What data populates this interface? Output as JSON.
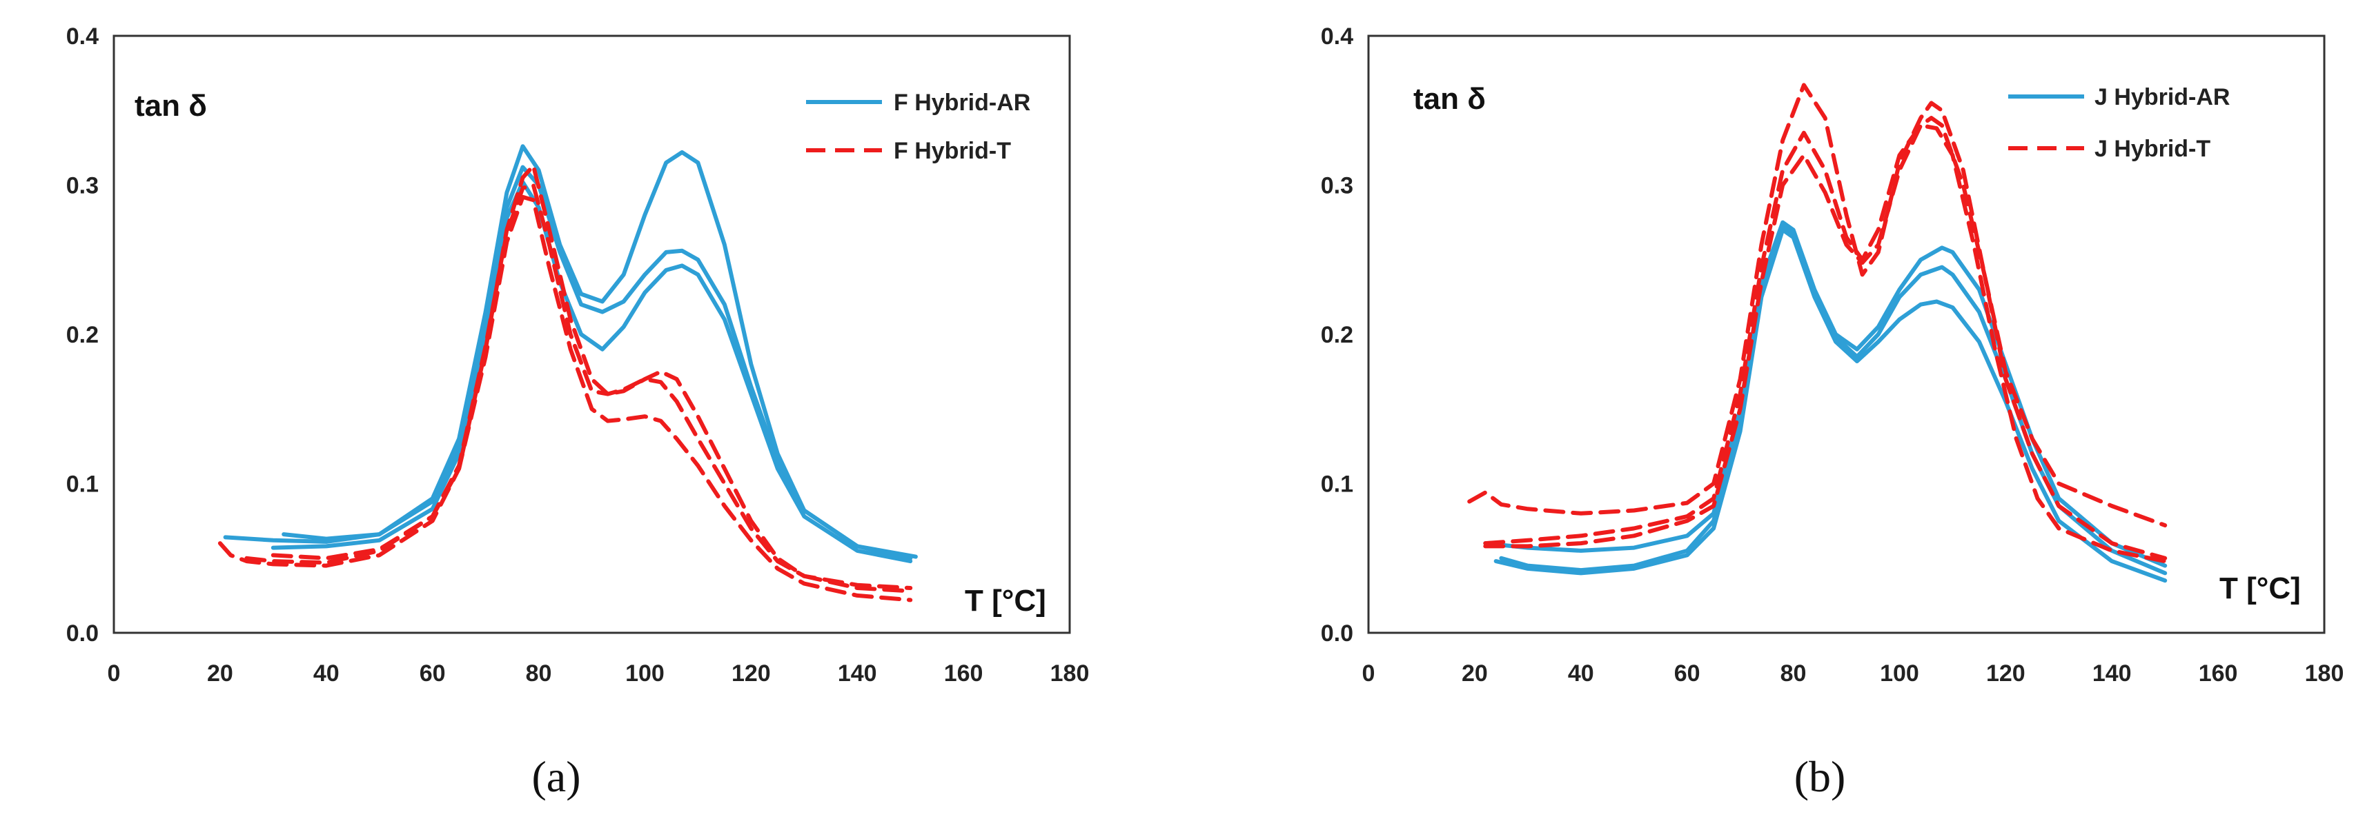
{
  "chart_data": [
    {
      "type": "line",
      "caption": "(a)",
      "annotation": "tan δ",
      "x_annotation": "T [°C]",
      "xlim": [
        0,
        180
      ],
      "ylim": [
        0,
        0.4
      ],
      "xticks": [
        "0",
        "20",
        "40",
        "60",
        "80",
        "100",
        "120",
        "140",
        "160",
        "180"
      ],
      "yticks": [
        "0.0",
        "0.1",
        "0.2",
        "0.3",
        "0.4"
      ],
      "legend_position": "top-right",
      "legend": [
        {
          "label": "F Hybrid-AR",
          "color": "#2e9fd6",
          "style": "solid"
        },
        {
          "label": "F Hybrid-T",
          "color": "#ee1c1c",
          "style": "dashed"
        }
      ],
      "series": [
        {
          "name": "F Hybrid-AR",
          "x": [
            21,
            30,
            40,
            50,
            60,
            65,
            70,
            74,
            77,
            80,
            84,
            88,
            92,
            96,
            100,
            104,
            107,
            110,
            115,
            120,
            125,
            130,
            140,
            150
          ],
          "y": [
            0.064,
            0.062,
            0.061,
            0.066,
            0.09,
            0.13,
            0.215,
            0.295,
            0.326,
            0.31,
            0.26,
            0.227,
            0.222,
            0.24,
            0.28,
            0.315,
            0.322,
            0.315,
            0.26,
            0.18,
            0.12,
            0.082,
            0.058,
            0.05
          ]
        },
        {
          "name": "F Hybrid-AR",
          "x": [
            32,
            40,
            50,
            60,
            65,
            70,
            74,
            77,
            80,
            84,
            88,
            92,
            96,
            100,
            104,
            107,
            110,
            115,
            120,
            125,
            130,
            140,
            151
          ],
          "y": [
            0.066,
            0.063,
            0.066,
            0.088,
            0.125,
            0.205,
            0.285,
            0.312,
            0.3,
            0.255,
            0.22,
            0.215,
            0.222,
            0.24,
            0.255,
            0.256,
            0.25,
            0.22,
            0.165,
            0.115,
            0.082,
            0.058,
            0.051
          ]
        },
        {
          "name": "F Hybrid-AR",
          "x": [
            30,
            40,
            50,
            60,
            65,
            70,
            74,
            77,
            80,
            84,
            88,
            92,
            96,
            100,
            104,
            107,
            110,
            115,
            120,
            125,
            130,
            140,
            150
          ],
          "y": [
            0.057,
            0.058,
            0.062,
            0.083,
            0.12,
            0.2,
            0.278,
            0.302,
            0.285,
            0.235,
            0.2,
            0.19,
            0.205,
            0.228,
            0.243,
            0.246,
            0.24,
            0.21,
            0.16,
            0.11,
            0.078,
            0.055,
            0.048
          ]
        },
        {
          "name": "F Hybrid-T",
          "x": [
            20,
            22,
            25,
            30,
            40,
            50,
            60,
            65,
            70,
            74,
            77,
            79,
            82,
            86,
            90,
            93,
            96,
            100,
            103,
            106,
            110,
            115,
            120,
            125,
            130,
            140,
            150
          ],
          "y": [
            0.06,
            0.052,
            0.048,
            0.046,
            0.045,
            0.052,
            0.075,
            0.11,
            0.19,
            0.27,
            0.305,
            0.313,
            0.27,
            0.21,
            0.17,
            0.16,
            0.162,
            0.17,
            0.175,
            0.17,
            0.145,
            0.11,
            0.075,
            0.05,
            0.038,
            0.03,
            0.028
          ]
        },
        {
          "name": "F Hybrid-T",
          "x": [
            25,
            30,
            40,
            50,
            60,
            65,
            70,
            74,
            77,
            79,
            82,
            86,
            90,
            93,
            96,
            100,
            103,
            106,
            110,
            115,
            120,
            125,
            130,
            140,
            150
          ],
          "y": [
            0.05,
            0.048,
            0.047,
            0.055,
            0.078,
            0.112,
            0.192,
            0.268,
            0.298,
            0.3,
            0.26,
            0.2,
            0.162,
            0.16,
            0.163,
            0.17,
            0.168,
            0.155,
            0.13,
            0.1,
            0.07,
            0.048,
            0.038,
            0.032,
            0.03
          ]
        },
        {
          "name": "F Hybrid-T",
          "x": [
            30,
            40,
            50,
            60,
            65,
            70,
            74,
            77,
            79,
            82,
            86,
            90,
            93,
            96,
            100,
            103,
            106,
            110,
            115,
            120,
            125,
            130,
            140,
            150
          ],
          "y": [
            0.052,
            0.05,
            0.056,
            0.078,
            0.11,
            0.185,
            0.262,
            0.292,
            0.29,
            0.245,
            0.19,
            0.15,
            0.142,
            0.143,
            0.145,
            0.142,
            0.13,
            0.112,
            0.085,
            0.062,
            0.043,
            0.033,
            0.025,
            0.022
          ]
        }
      ]
    },
    {
      "type": "line",
      "caption": "(b)",
      "annotation": "tan δ",
      "x_annotation": "T [°C]",
      "xlim": [
        0,
        180
      ],
      "ylim": [
        0,
        0.4
      ],
      "xticks": [
        "0",
        "20",
        "40",
        "60",
        "80",
        "100",
        "120",
        "140",
        "160",
        "180"
      ],
      "yticks": [
        "0.0",
        "0.1",
        "0.2",
        "0.3",
        "0.4"
      ],
      "legend_position": "top-right",
      "legend": [
        {
          "label": "J Hybrid-AR",
          "color": "#2e9fd6",
          "style": "solid"
        },
        {
          "label": "J Hybrid-T",
          "color": "#ee1c1c",
          "style": "dashed"
        }
      ],
      "series": [
        {
          "name": "J Hybrid-AR",
          "x": [
            22,
            30,
            40,
            50,
            60,
            65,
            70,
            74,
            78,
            80,
            84,
            88,
            92,
            96,
            100,
            104,
            108,
            110,
            115,
            120,
            125,
            130,
            140,
            150
          ],
          "y": [
            0.06,
            0.057,
            0.055,
            0.057,
            0.065,
            0.08,
            0.15,
            0.235,
            0.275,
            0.27,
            0.23,
            0.2,
            0.19,
            0.205,
            0.23,
            0.25,
            0.258,
            0.255,
            0.23,
            0.18,
            0.13,
            0.09,
            0.06,
            0.045
          ]
        },
        {
          "name": "J Hybrid-AR",
          "x": [
            25,
            30,
            40,
            50,
            60,
            65,
            70,
            74,
            78,
            80,
            84,
            88,
            92,
            96,
            100,
            104,
            108,
            110,
            115,
            120,
            125,
            130,
            140,
            150
          ],
          "y": [
            0.05,
            0.045,
            0.042,
            0.045,
            0.055,
            0.075,
            0.14,
            0.23,
            0.272,
            0.268,
            0.228,
            0.198,
            0.185,
            0.2,
            0.225,
            0.24,
            0.245,
            0.24,
            0.215,
            0.17,
            0.12,
            0.085,
            0.055,
            0.04
          ]
        },
        {
          "name": "J Hybrid-AR",
          "x": [
            24,
            30,
            40,
            50,
            60,
            65,
            70,
            74,
            78,
            80,
            84,
            88,
            92,
            96,
            100,
            104,
            107,
            110,
            115,
            120,
            125,
            130,
            140,
            150
          ],
          "y": [
            0.048,
            0.043,
            0.04,
            0.043,
            0.052,
            0.07,
            0.135,
            0.225,
            0.27,
            0.265,
            0.225,
            0.195,
            0.182,
            0.195,
            0.21,
            0.22,
            0.222,
            0.218,
            0.195,
            0.155,
            0.11,
            0.075,
            0.048,
            0.035
          ]
        },
        {
          "name": "J Hybrid-T",
          "x": [
            19,
            22,
            25,
            30,
            40,
            50,
            60,
            65,
            70,
            74,
            78,
            82,
            86,
            90,
            93,
            96,
            100,
            104,
            106,
            108,
            112,
            116,
            120,
            125,
            130,
            140,
            150
          ],
          "y": [
            0.088,
            0.094,
            0.086,
            0.083,
            0.08,
            0.082,
            0.087,
            0.1,
            0.17,
            0.26,
            0.33,
            0.367,
            0.345,
            0.28,
            0.24,
            0.255,
            0.315,
            0.345,
            0.355,
            0.35,
            0.31,
            0.24,
            0.175,
            0.13,
            0.1,
            0.085,
            0.072
          ]
        },
        {
          "name": "J Hybrid-T",
          "x": [
            22,
            30,
            40,
            50,
            60,
            65,
            70,
            74,
            78,
            82,
            86,
            90,
            93,
            96,
            100,
            104,
            107,
            110,
            114,
            118,
            122,
            126,
            130,
            140,
            150
          ],
          "y": [
            0.06,
            0.062,
            0.065,
            0.07,
            0.078,
            0.09,
            0.16,
            0.245,
            0.31,
            0.335,
            0.31,
            0.265,
            0.25,
            0.27,
            0.32,
            0.34,
            0.338,
            0.32,
            0.26,
            0.19,
            0.13,
            0.09,
            0.07,
            0.055,
            0.048
          ]
        },
        {
          "name": "J Hybrid-T",
          "x": [
            22,
            30,
            40,
            50,
            60,
            65,
            70,
            74,
            78,
            82,
            86,
            90,
            93,
            96,
            100,
            104,
            106,
            108,
            112,
            116,
            120,
            125,
            130,
            140,
            150
          ],
          "y": [
            0.058,
            0.058,
            0.06,
            0.065,
            0.075,
            0.085,
            0.15,
            0.235,
            0.3,
            0.32,
            0.295,
            0.26,
            0.248,
            0.26,
            0.31,
            0.34,
            0.345,
            0.34,
            0.3,
            0.24,
            0.17,
            0.12,
            0.085,
            0.06,
            0.05
          ]
        }
      ]
    }
  ]
}
